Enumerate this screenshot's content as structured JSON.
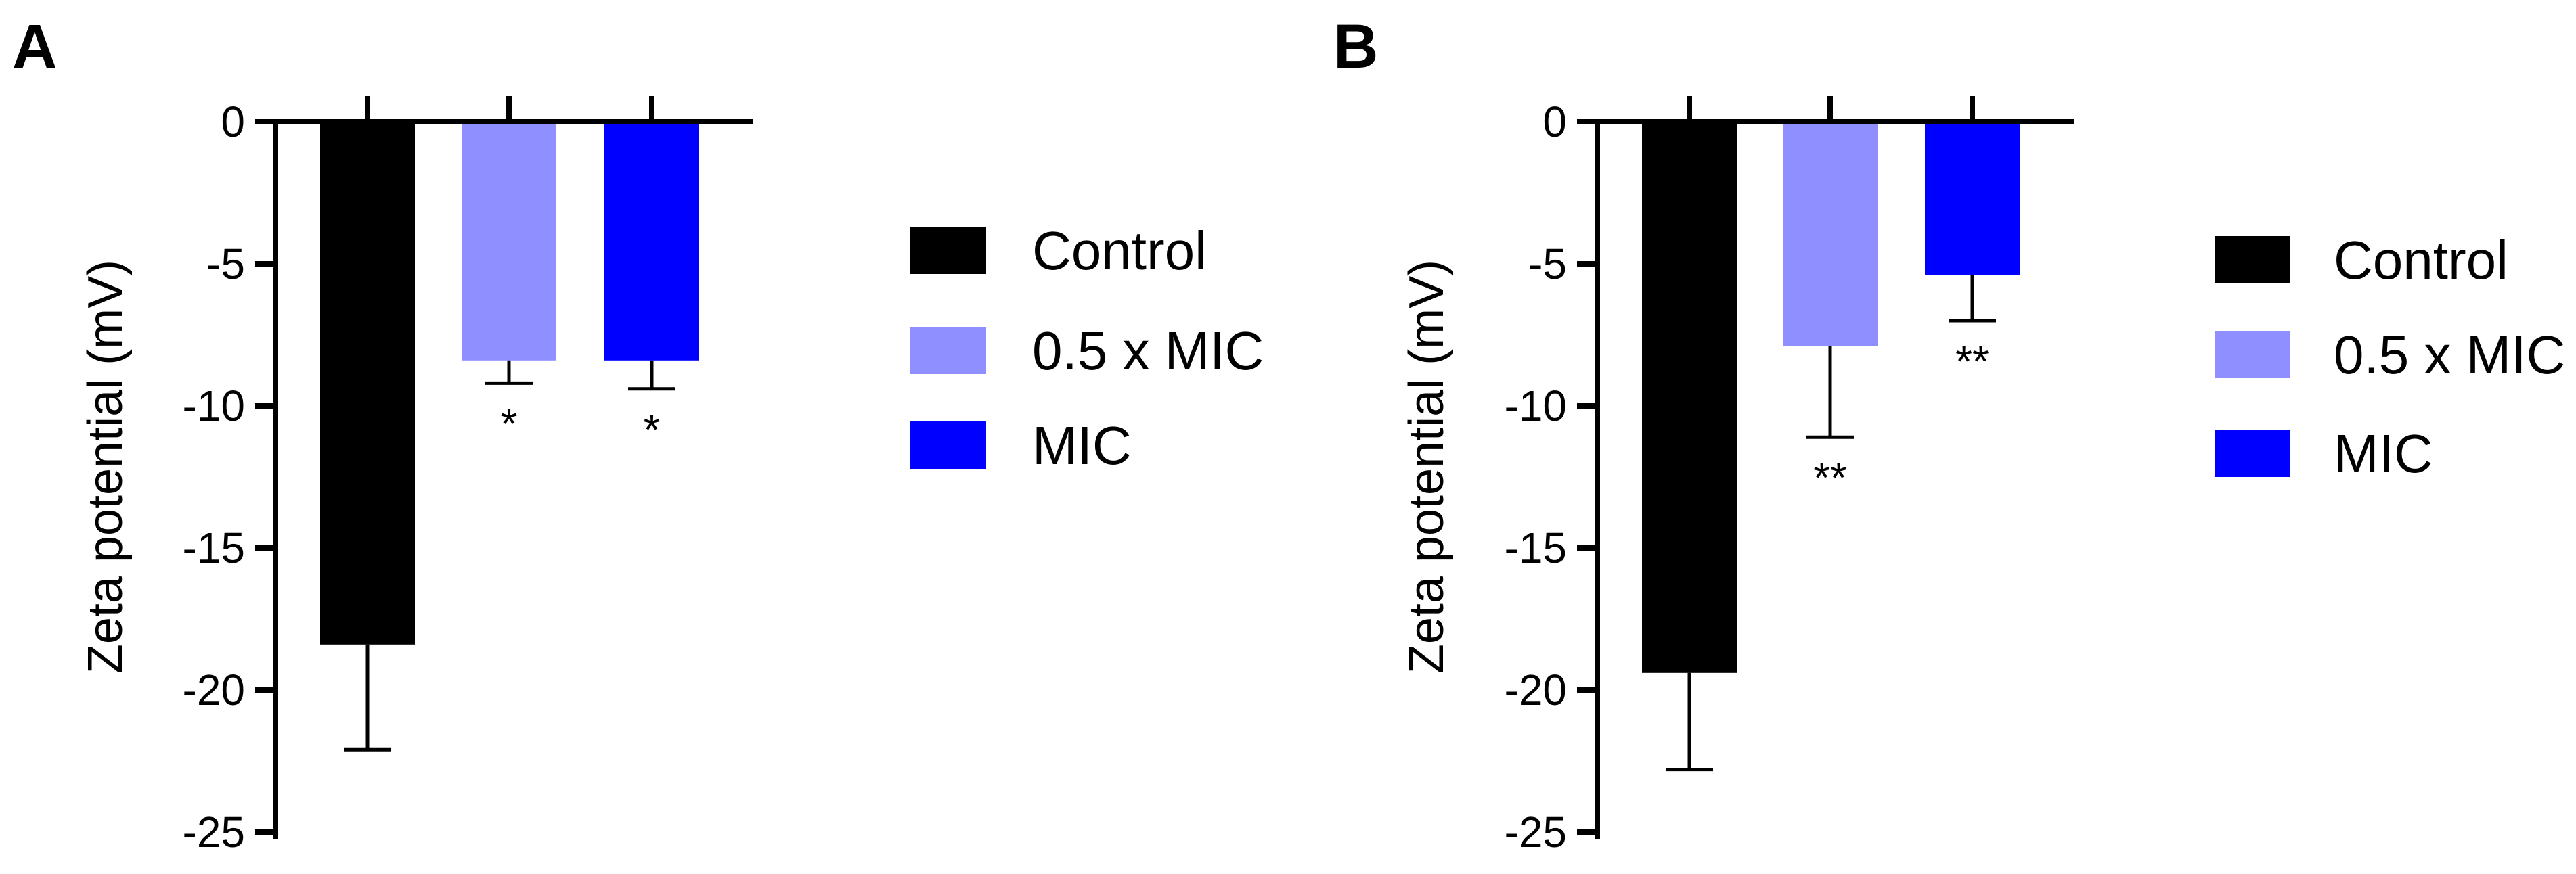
{
  "chart_data": [
    {
      "panel": "A",
      "type": "bar",
      "ylabel": "Zeta potential (mV)",
      "xlabel": "",
      "ylim": [
        -25,
        0
      ],
      "yticks": [
        0,
        -5,
        -10,
        -15,
        -20,
        -25
      ],
      "categories": [
        "Control",
        "0.5 x MIC",
        "MIC"
      ],
      "values": [
        -18.4,
        -8.4,
        -8.4
      ],
      "errors": [
        3.7,
        0.8,
        1.0
      ],
      "significance": [
        "",
        "*",
        "*"
      ],
      "colors": [
        "#000000",
        "#8f8fff",
        "#0000ff"
      ],
      "legend": [
        "Control",
        "0.5 x MIC",
        "MIC"
      ],
      "legend_position": "right"
    },
    {
      "panel": "B",
      "type": "bar",
      "ylabel": "Zeta potential (mV)",
      "xlabel": "",
      "ylim": [
        -25,
        0
      ],
      "yticks": [
        0,
        -5,
        -10,
        -15,
        -20,
        -25
      ],
      "categories": [
        "Control",
        "0.5 x MIC",
        "MIC"
      ],
      "values": [
        -19.4,
        -7.9,
        -5.4
      ],
      "errors": [
        3.4,
        3.2,
        1.6
      ],
      "significance": [
        "",
        "**",
        "**"
      ],
      "colors": [
        "#000000",
        "#8f8fff",
        "#0000ff"
      ],
      "legend": [
        "Control",
        "0.5 x MIC",
        "MIC"
      ],
      "legend_position": "right"
    }
  ]
}
